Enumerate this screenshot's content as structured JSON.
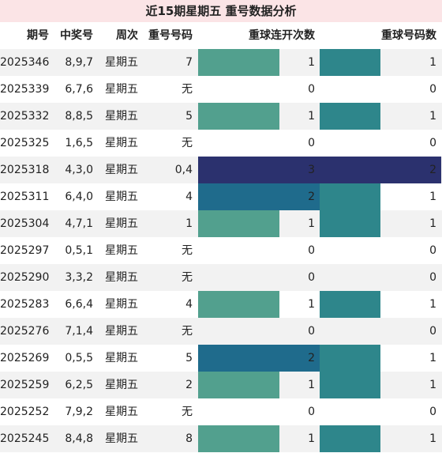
{
  "title": "近15期星期五 重号数据分析",
  "headers": {
    "period": "期号",
    "winning": "中奖号",
    "weekday": "周次",
    "repeat_nums": "重号号码",
    "consec_count": "重球连开次数",
    "repeat_count": "重球号码数"
  },
  "colors": {
    "value_1": "#52a08e",
    "value_2": "#1f6b8c",
    "value_3": "#2b316e",
    "count_1": "#2e868b",
    "count_2": "#2b316e",
    "title_bg": "#fbe4e6",
    "stripe": "#f2f2f2"
  },
  "chart_data": {
    "type": "table",
    "title": "近15期星期五 重号数据分析",
    "columns": [
      "期号",
      "中奖号",
      "周次",
      "重号号码",
      "重球连开次数",
      "重球号码数"
    ],
    "rows": [
      {
        "period": "2025346",
        "winning": "8,9,7",
        "weekday": "星期五",
        "repeat": "7",
        "consec": 1,
        "count": 1
      },
      {
        "period": "2025339",
        "winning": "6,7,6",
        "weekday": "星期五",
        "repeat": "无",
        "consec": 0,
        "count": 0
      },
      {
        "period": "2025332",
        "winning": "8,8,5",
        "weekday": "星期五",
        "repeat": "5",
        "consec": 1,
        "count": 1
      },
      {
        "period": "2025325",
        "winning": "1,6,5",
        "weekday": "星期五",
        "repeat": "无",
        "consec": 0,
        "count": 0
      },
      {
        "period": "2025318",
        "winning": "4,3,0",
        "weekday": "星期五",
        "repeat": "0,4",
        "consec": 3,
        "count": 2
      },
      {
        "period": "2025311",
        "winning": "6,4,0",
        "weekday": "星期五",
        "repeat": "4",
        "consec": 2,
        "count": 1
      },
      {
        "period": "2025304",
        "winning": "4,7,1",
        "weekday": "星期五",
        "repeat": "1",
        "consec": 1,
        "count": 1
      },
      {
        "period": "2025297",
        "winning": "0,5,1",
        "weekday": "星期五",
        "repeat": "无",
        "consec": 0,
        "count": 0
      },
      {
        "period": "2025290",
        "winning": "3,3,2",
        "weekday": "星期五",
        "repeat": "无",
        "consec": 0,
        "count": 0
      },
      {
        "period": "2025283",
        "winning": "6,6,4",
        "weekday": "星期五",
        "repeat": "4",
        "consec": 1,
        "count": 1
      },
      {
        "period": "2025276",
        "winning": "7,1,4",
        "weekday": "星期五",
        "repeat": "无",
        "consec": 0,
        "count": 0
      },
      {
        "period": "2025269",
        "winning": "0,5,5",
        "weekday": "星期五",
        "repeat": "5",
        "consec": 2,
        "count": 1
      },
      {
        "period": "2025259",
        "winning": "6,2,5",
        "weekday": "星期五",
        "repeat": "2",
        "consec": 1,
        "count": 1
      },
      {
        "period": "2025252",
        "winning": "7,9,2",
        "weekday": "星期五",
        "repeat": "无",
        "consec": 0,
        "count": 0
      },
      {
        "period": "2025245",
        "winning": "8,4,8",
        "weekday": "星期五",
        "repeat": "8",
        "consec": 1,
        "count": 1
      }
    ],
    "consec_max": 3,
    "count_max": 2
  }
}
